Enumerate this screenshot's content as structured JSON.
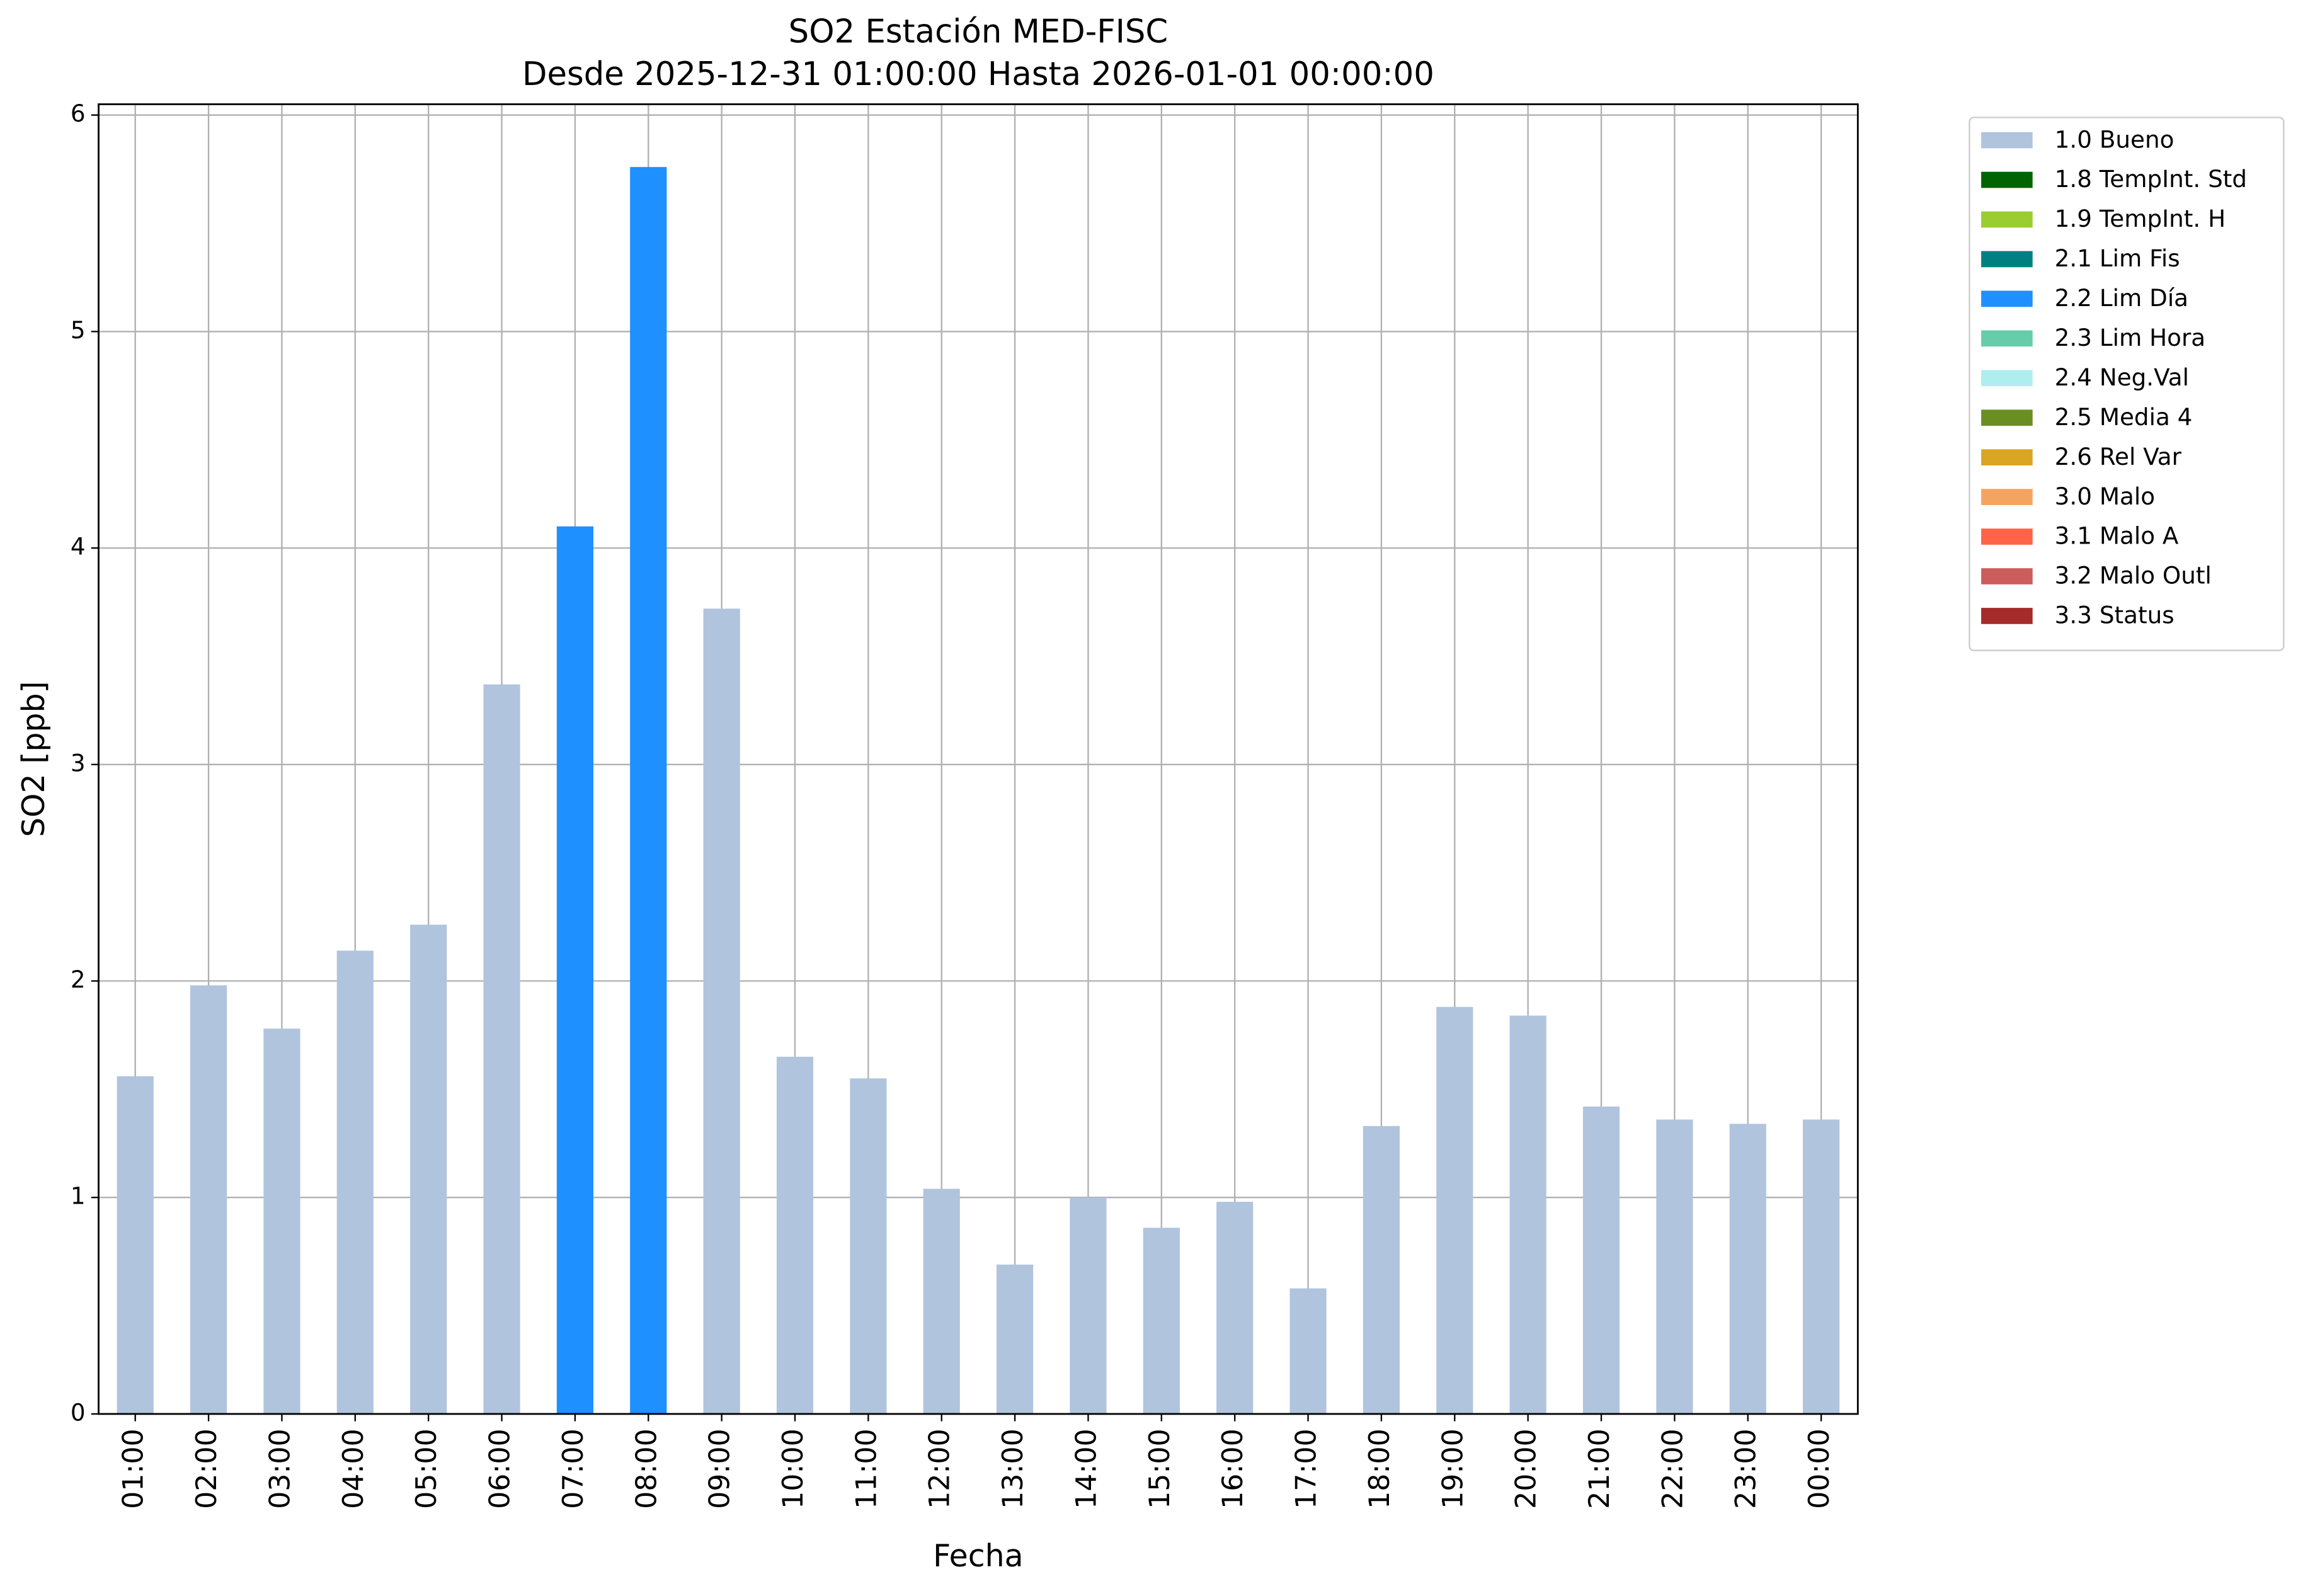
{
  "chart_data": {
    "type": "stacked_bar",
    "title": "SO2 Estación MED-FISC",
    "subtitle": "Desde 2025-12-31 01:00:00 Hasta 2026-01-01 00:00:00",
    "x_label": "Fecha",
    "y_label": "SO2 [ppb]",
    "categories": [
      "01:00",
      "02:00",
      "03:00",
      "04:00",
      "05:00",
      "06:00",
      "07:00",
      "08:00",
      "09:00",
      "10:00",
      "11:00",
      "12:00",
      "13:00",
      "14:00",
      "15:00",
      "16:00",
      "17:00",
      "18:00",
      "19:00",
      "20:00",
      "21:00",
      "22:00",
      "23:00",
      "00:00"
    ],
    "series": [
      {
        "name": "1.0 Bueno",
        "color": "#b0c4de",
        "values": [
          1.56,
          1.98,
          1.78,
          2.14,
          2.26,
          3.37,
          null,
          null,
          3.72,
          1.65,
          1.55,
          1.04,
          0.69,
          1.0,
          0.86,
          0.98,
          0.58,
          1.33,
          1.88,
          1.84,
          1.42,
          1.36,
          1.34,
          1.36
        ]
      },
      {
        "name": "1.8 TempInt. Std",
        "color": "#006400",
        "values": [
          null,
          null,
          null,
          null,
          null,
          null,
          null,
          null,
          null,
          null,
          null,
          null,
          null,
          null,
          null,
          null,
          null,
          null,
          null,
          null,
          null,
          null,
          null,
          null
        ]
      },
      {
        "name": "1.9 TempInt. H",
        "color": "#9acd32",
        "values": [
          null,
          null,
          null,
          null,
          null,
          null,
          null,
          null,
          null,
          null,
          null,
          null,
          null,
          null,
          null,
          null,
          null,
          null,
          null,
          null,
          null,
          null,
          null,
          null
        ]
      },
      {
        "name": "2.1 Lim Fis",
        "color": "#008080",
        "values": [
          null,
          null,
          null,
          null,
          null,
          null,
          null,
          null,
          null,
          null,
          null,
          null,
          null,
          null,
          null,
          null,
          null,
          null,
          null,
          null,
          null,
          null,
          null,
          null
        ]
      },
      {
        "name": "2.2 Lim Día",
        "color": "#1e90ff",
        "values": [
          null,
          null,
          null,
          null,
          null,
          null,
          4.1,
          5.76,
          null,
          null,
          null,
          null,
          null,
          null,
          null,
          null,
          null,
          null,
          null,
          null,
          null,
          null,
          null,
          null
        ]
      },
      {
        "name": "2.3 Lim Hora",
        "color": "#66cdaa",
        "values": [
          null,
          null,
          null,
          null,
          null,
          null,
          null,
          null,
          null,
          null,
          null,
          null,
          null,
          null,
          null,
          null,
          null,
          null,
          null,
          null,
          null,
          null,
          null,
          null
        ]
      },
      {
        "name": "2.4 Neg.Val",
        "color": "#afeeee",
        "values": [
          null,
          null,
          null,
          null,
          null,
          null,
          null,
          null,
          null,
          null,
          null,
          null,
          null,
          null,
          null,
          null,
          null,
          null,
          null,
          null,
          null,
          null,
          null,
          null
        ]
      },
      {
        "name": "2.5 Media 4",
        "color": "#6b8e23",
        "values": [
          null,
          null,
          null,
          null,
          null,
          null,
          null,
          null,
          null,
          null,
          null,
          null,
          null,
          null,
          null,
          null,
          null,
          null,
          null,
          null,
          null,
          null,
          null,
          null
        ]
      },
      {
        "name": "2.6 Rel Var",
        "color": "#daa520",
        "values": [
          null,
          null,
          null,
          null,
          null,
          null,
          null,
          null,
          null,
          null,
          null,
          null,
          null,
          null,
          null,
          null,
          null,
          null,
          null,
          null,
          null,
          null,
          null,
          null
        ]
      },
      {
        "name": "3.0 Malo",
        "color": "#f4a460",
        "values": [
          null,
          null,
          null,
          null,
          null,
          null,
          null,
          null,
          null,
          null,
          null,
          null,
          null,
          null,
          null,
          null,
          null,
          null,
          null,
          null,
          null,
          null,
          null,
          null
        ]
      },
      {
        "name": "3.1 Malo A",
        "color": "#ff6347",
        "values": [
          null,
          null,
          null,
          null,
          null,
          null,
          null,
          null,
          null,
          null,
          null,
          null,
          null,
          null,
          null,
          null,
          null,
          null,
          null,
          null,
          null,
          null,
          null,
          null
        ]
      },
      {
        "name": "3.2 Malo Outl",
        "color": "#cd5c5c",
        "values": [
          null,
          null,
          null,
          null,
          null,
          null,
          null,
          null,
          null,
          null,
          null,
          null,
          null,
          null,
          null,
          null,
          null,
          null,
          null,
          null,
          null,
          null,
          null,
          null
        ]
      },
      {
        "name": "3.3 Status",
        "color": "#a52a2a",
        "values": [
          null,
          null,
          null,
          null,
          null,
          null,
          null,
          null,
          null,
          null,
          null,
          null,
          null,
          null,
          null,
          null,
          null,
          null,
          null,
          null,
          null,
          null,
          null,
          null
        ]
      }
    ],
    "ylim": [
      0,
      6.05
    ],
    "yticks": [
      0,
      1,
      2,
      3,
      4,
      5,
      6
    ],
    "grid": true,
    "legend": "outside right"
  }
}
